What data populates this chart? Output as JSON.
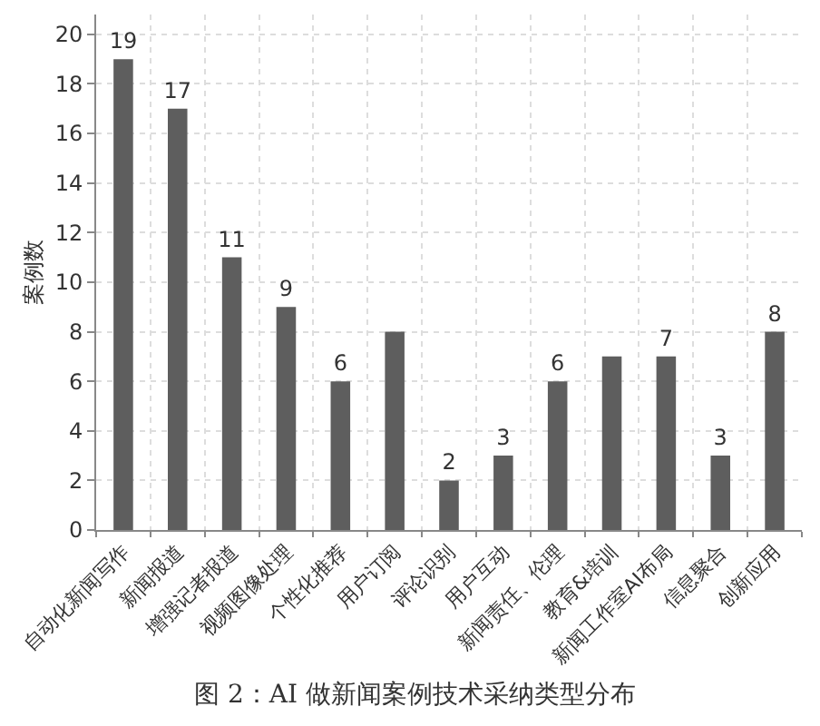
{
  "chart_data": {
    "type": "bar",
    "categories": [
      "自动化新闻写作",
      "新闻报道",
      "增强记者报道",
      "视频图像处理",
      "个性化推荐",
      "用户订阅",
      "评论识别",
      "用户互动",
      "新闻责任、伦理",
      "教育&培训",
      "新闻工作室AI布局",
      "信息聚合",
      "创新应用"
    ],
    "values": [
      19,
      17,
      11,
      9,
      6,
      8,
      2,
      3,
      6,
      7,
      7,
      3,
      8
    ],
    "value_labels": [
      "19",
      "17",
      "11",
      "9",
      "6",
      null,
      "2",
      "3",
      "6",
      null,
      "7",
      "3",
      "8"
    ],
    "color": "#5e5e5e",
    "ylabel": "案例数",
    "ylim": [
      0,
      20.8
    ],
    "yticks": [
      0,
      2,
      4,
      6,
      8,
      10,
      12,
      14,
      16,
      18,
      20
    ],
    "grid": true,
    "annotations": [
      "图 2：AI 做新闻案例技术采纳类型分布"
    ]
  }
}
